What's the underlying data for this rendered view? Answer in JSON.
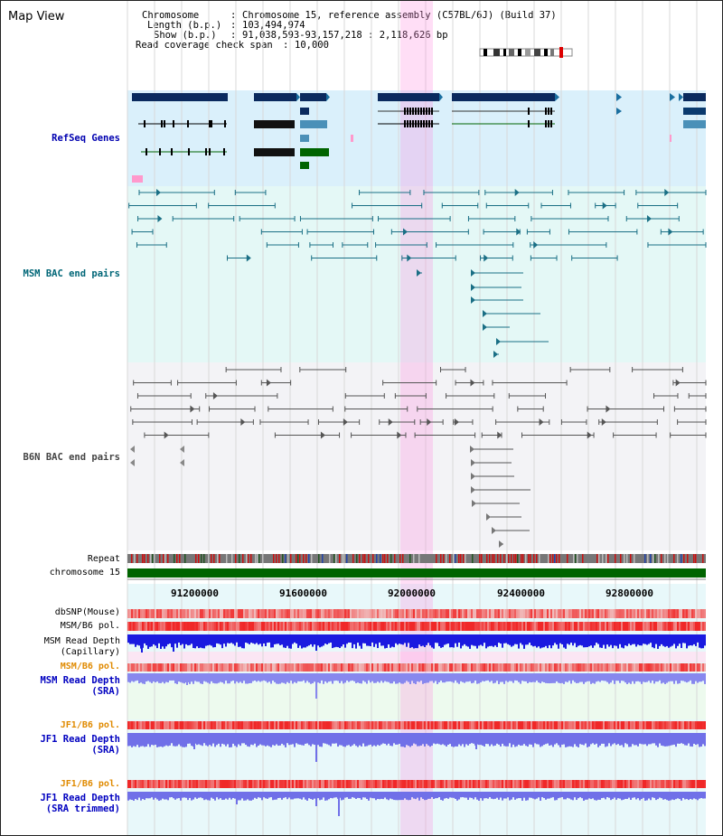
{
  "view": {
    "title": "Map View",
    "chromosome_label": "Chromosome",
    "chromosome_value": "Chromosome 15, reference assembly (C57BL/6J) (Build 37)",
    "length_label": "Length (b.p.)",
    "length_value": "103,494,974",
    "show_label": "Show (b.p.)",
    "show_value": "91,038,593-93,157,218 : 2,118,626 bp",
    "coverage_label": "Read coverage check span",
    "coverage_value": "10,000"
  },
  "tracks": {
    "refseq": "RefSeq Genes",
    "msm_bac": "MSM BAC end pairs",
    "b6n_bac": "B6N BAC end pairs",
    "repeat": "Repeat",
    "chromosome": "chromosome 15",
    "dbsnp": "dbSNP(Mouse)",
    "msm_b6_pol": "MSM/B6 pol.",
    "msm_depth_cap_1": "MSM Read Depth",
    "msm_depth_cap_2": "(Capillary)",
    "msm_b6_pol_2": "MSM/B6 pol.",
    "msm_depth_sra_1": "MSM Read Depth",
    "msm_depth_sra_2": "(SRA)",
    "jf1_b6_pol": "JF1/B6 pol.",
    "jf1_depth_sra_1": "JF1 Read Depth",
    "jf1_depth_sra_2": "(SRA)",
    "jf1_b6_pol_2": "JF1/B6 pol.",
    "jf1_depth_trim_1": "JF1 Read Depth",
    "jf1_depth_trim_2": "(SRA trimmed)"
  },
  "axis": {
    "ticks": [
      "91200000",
      "91600000",
      "92000000",
      "92400000",
      "92800000"
    ]
  },
  "colors": {
    "refseq_label": "#0000b0",
    "msm_label": "#006677",
    "b6n_label": "#444444",
    "orange_label": "#e08a00",
    "blue_label": "#0000c0",
    "highlight": "#ff88dd"
  }
}
